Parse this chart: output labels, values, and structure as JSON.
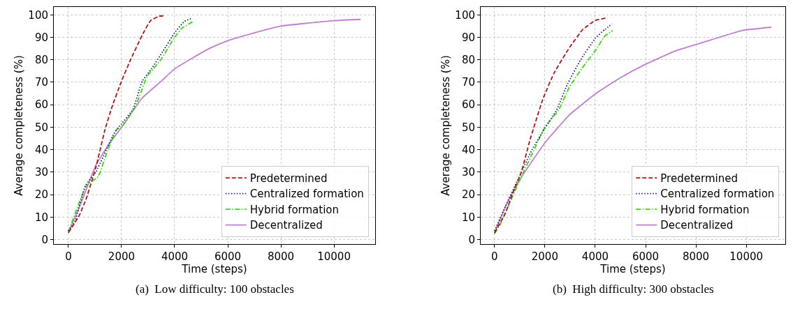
{
  "chart_data": [
    {
      "type": "line",
      "xlabel": "Time (steps)",
      "ylabel": "Average completeness (%)",
      "xlim": [
        -550,
        11550
      ],
      "xticks": [
        0,
        2000,
        4000,
        6000,
        8000,
        10000
      ],
      "ylim": [
        -2,
        103.5
      ],
      "yticks": [
        0,
        10,
        20,
        30,
        40,
        50,
        60,
        70,
        80,
        90,
        100
      ],
      "grid": true,
      "legend": "bottom right",
      "annotations": [
        "(a)  Low difficulty: 100 obstacles"
      ],
      "series": [
        {
          "name": "Predetermined",
          "color": "#b01515",
          "line_style": "dashed",
          "x": [
            0,
            420,
            680,
            1030,
            1380,
            1640,
            2000,
            2340,
            2780,
            3090,
            3400,
            3630
          ],
          "values": [
            3,
            11,
            18.5,
            32,
            49,
            59,
            70.5,
            80,
            91,
            97.4,
            99.3,
            99.6
          ]
        },
        {
          "name": "Centralized formation",
          "color": "#16168e",
          "line_style": "dotted",
          "x": [
            0,
            245,
            640,
            1030,
            1730,
            2000,
            2430,
            2780,
            3130,
            3570,
            4000,
            4360,
            4650
          ],
          "values": [
            3.8,
            8,
            24,
            30,
            47.5,
            51.5,
            58,
            70.5,
            76,
            84,
            92,
            97,
            98.5
          ]
        },
        {
          "name": "Hybrid formation",
          "color": "#33dd00",
          "line_style": "dashdot",
          "x": [
            0,
            680,
            1120,
            1470,
            1820,
            2000,
            2520,
            2960,
            3480,
            4000,
            4270,
            4690
          ],
          "values": [
            3.4,
            24,
            28,
            39.5,
            49,
            50,
            59,
            72.5,
            80,
            90,
            94,
            97
          ]
        },
        {
          "name": "Decentralized",
          "color": "#c07fd0",
          "line_style": "solid",
          "x": [
            0,
            500,
            1030,
            1500,
            2000,
            2780,
            3500,
            4000,
            4700,
            5300,
            6000,
            7000,
            8000,
            9000,
            10000,
            11000
          ],
          "values": [
            3,
            17,
            33,
            42,
            50,
            63,
            70.5,
            76,
            81,
            85,
            88.5,
            92,
            95,
            96.3,
            97.4,
            98
          ]
        }
      ]
    },
    {
      "type": "line",
      "xlabel": "Time (steps)",
      "ylabel": "Average completeness (%)",
      "xlim": [
        -550,
        11550
      ],
      "xticks": [
        0,
        2000,
        4000,
        6000,
        8000,
        10000
      ],
      "ylim": [
        -2,
        103.5
      ],
      "yticks": [
        0,
        10,
        20,
        30,
        40,
        50,
        60,
        70,
        80,
        90,
        100
      ],
      "grid": true,
      "legend": "bottom right",
      "annotations": [
        "(b)  High difficulty: 300 obstacles"
      ],
      "series": [
        {
          "name": "Predetermined",
          "color": "#b01515",
          "line_style": "dashed",
          "x": [
            0,
            440,
            700,
            1050,
            1400,
            1920,
            2360,
            2980,
            3510,
            4000,
            4420
          ],
          "values": [
            3,
            12,
            20,
            29.5,
            44,
            62.5,
            74,
            85.5,
            93.5,
            97.5,
            98.5
          ]
        },
        {
          "name": "Centralized formation",
          "color": "#16168e",
          "line_style": "dotted",
          "x": [
            0,
            440,
            920,
            1490,
            2000,
            2460,
            2890,
            3420,
            4000,
            4380,
            4670
          ],
          "values": [
            3.8,
            15,
            26.5,
            40,
            49.5,
            57.5,
            69,
            80,
            89.5,
            93.5,
            96
          ]
        },
        {
          "name": "Hybrid formation",
          "color": "#33dd00",
          "line_style": "dashdot",
          "x": [
            0,
            260,
            960,
            1490,
            2000,
            2540,
            2980,
            3590,
            4000,
            4380,
            4690
          ],
          "values": [
            2.6,
            7.5,
            25.5,
            38,
            50,
            57.5,
            68,
            78,
            84,
            90.5,
            93
          ]
        },
        {
          "name": "Decentralized",
          "color": "#c07fd0",
          "line_style": "solid",
          "x": [
            0,
            530,
            1050,
            2000,
            2980,
            4030,
            5000,
            6000,
            7190,
            8500,
            9820,
            11000
          ],
          "values": [
            3,
            17,
            27.5,
            43,
            55.5,
            65,
            72,
            78,
            84,
            88.5,
            93,
            94.5
          ]
        }
      ]
    }
  ]
}
